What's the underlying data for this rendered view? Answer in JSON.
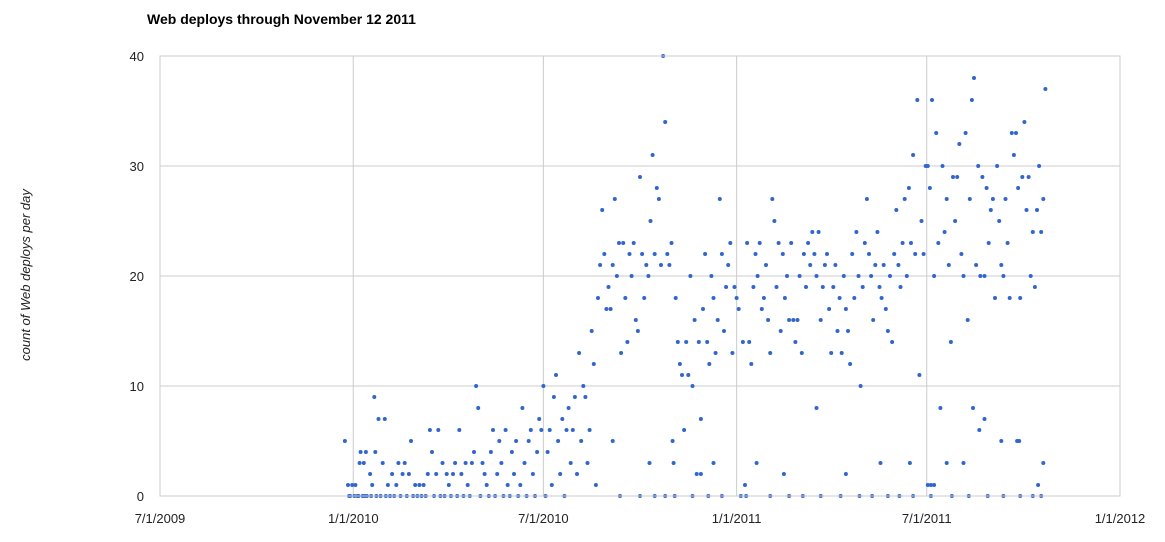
{
  "chart_data": {
    "type": "scatter",
    "title": "Web deploys through November 12 2011",
    "xlabel": "",
    "ylabel": "count of Web deploys per day",
    "x_ticks": [
      "7/1/2009",
      "1/1/2010",
      "7/1/2010",
      "1/1/2011",
      "7/1/2011",
      "1/1/2012"
    ],
    "xlim": [
      "2009-07-01",
      "2012-01-01"
    ],
    "y_ticks": [
      0,
      10,
      20,
      30,
      40
    ],
    "ylim": [
      0,
      40
    ],
    "grid": true,
    "legend": "none",
    "point_color": "#3366cc",
    "points": [
      [
        "2009-12-24",
        5
      ],
      [
        "2009-12-27",
        1
      ],
      [
        "2009-12-28",
        0
      ],
      [
        "2009-12-29",
        0
      ],
      [
        "2009-12-31",
        1
      ],
      [
        "2010-01-02",
        0
      ],
      [
        "2010-01-03",
        1
      ],
      [
        "2010-01-05",
        0
      ],
      [
        "2010-01-06",
        0
      ],
      [
        "2010-01-07",
        3
      ],
      [
        "2010-01-08",
        4
      ],
      [
        "2010-01-10",
        0
      ],
      [
        "2010-01-11",
        3
      ],
      [
        "2010-01-12",
        0
      ],
      [
        "2010-01-13",
        4
      ],
      [
        "2010-01-14",
        0
      ],
      [
        "2010-01-17",
        2
      ],
      [
        "2010-01-18",
        0
      ],
      [
        "2010-01-19",
        1
      ],
      [
        "2010-01-21",
        9
      ],
      [
        "2010-01-22",
        4
      ],
      [
        "2010-01-23",
        0
      ],
      [
        "2010-01-25",
        7
      ],
      [
        "2010-01-27",
        0
      ],
      [
        "2010-01-29",
        3
      ],
      [
        "2010-01-31",
        7
      ],
      [
        "2010-02-01",
        0
      ],
      [
        "2010-02-03",
        1
      ],
      [
        "2010-02-05",
        0
      ],
      [
        "2010-02-07",
        2
      ],
      [
        "2010-02-09",
        0
      ],
      [
        "2010-02-11",
        1
      ],
      [
        "2010-02-13",
        3
      ],
      [
        "2010-02-15",
        0
      ],
      [
        "2010-02-17",
        2
      ],
      [
        "2010-02-19",
        3
      ],
      [
        "2010-02-21",
        0
      ],
      [
        "2010-02-23",
        2
      ],
      [
        "2010-02-25",
        5
      ],
      [
        "2010-02-27",
        0
      ],
      [
        "2010-03-01",
        1
      ],
      [
        "2010-03-03",
        0
      ],
      [
        "2010-03-05",
        1
      ],
      [
        "2010-03-07",
        0
      ],
      [
        "2010-03-09",
        1
      ],
      [
        "2010-03-11",
        0
      ],
      [
        "2010-03-13",
        2
      ],
      [
        "2010-03-15",
        6
      ],
      [
        "2010-03-17",
        4
      ],
      [
        "2010-03-19",
        0
      ],
      [
        "2010-03-21",
        2
      ],
      [
        "2010-03-23",
        6
      ],
      [
        "2010-03-25",
        0
      ],
      [
        "2010-03-27",
        3
      ],
      [
        "2010-03-29",
        0
      ],
      [
        "2010-03-31",
        2
      ],
      [
        "2010-04-02",
        1
      ],
      [
        "2010-04-04",
        0
      ],
      [
        "2010-04-06",
        2
      ],
      [
        "2010-04-08",
        3
      ],
      [
        "2010-04-10",
        0
      ],
      [
        "2010-04-12",
        6
      ],
      [
        "2010-04-14",
        2
      ],
      [
        "2010-04-16",
        0
      ],
      [
        "2010-04-18",
        3
      ],
      [
        "2010-04-20",
        1
      ],
      [
        "2010-04-22",
        0
      ],
      [
        "2010-04-24",
        3
      ],
      [
        "2010-04-26",
        4
      ],
      [
        "2010-04-28",
        10
      ],
      [
        "2010-04-30",
        8
      ],
      [
        "2010-05-02",
        0
      ],
      [
        "2010-05-04",
        3
      ],
      [
        "2010-05-06",
        2
      ],
      [
        "2010-05-08",
        1
      ],
      [
        "2010-05-10",
        0
      ],
      [
        "2010-05-12",
        4
      ],
      [
        "2010-05-14",
        6
      ],
      [
        "2010-05-16",
        0
      ],
      [
        "2010-05-18",
        2
      ],
      [
        "2010-05-20",
        5
      ],
      [
        "2010-05-22",
        3
      ],
      [
        "2010-05-24",
        0
      ],
      [
        "2010-05-26",
        6
      ],
      [
        "2010-05-28",
        1
      ],
      [
        "2010-05-30",
        0
      ],
      [
        "2010-06-01",
        4
      ],
      [
        "2010-06-03",
        2
      ],
      [
        "2010-06-05",
        5
      ],
      [
        "2010-06-07",
        0
      ],
      [
        "2010-06-09",
        1
      ],
      [
        "2010-06-11",
        8
      ],
      [
        "2010-06-13",
        3
      ],
      [
        "2010-06-15",
        0
      ],
      [
        "2010-06-17",
        5
      ],
      [
        "2010-06-19",
        6
      ],
      [
        "2010-06-21",
        2
      ],
      [
        "2010-06-23",
        0
      ],
      [
        "2010-06-25",
        4
      ],
      [
        "2010-06-27",
        7
      ],
      [
        "2010-06-29",
        6
      ],
      [
        "2010-07-01",
        10
      ],
      [
        "2010-07-03",
        0
      ],
      [
        "2010-07-05",
        4
      ],
      [
        "2010-07-07",
        6
      ],
      [
        "2010-07-09",
        1
      ],
      [
        "2010-07-11",
        9
      ],
      [
        "2010-07-13",
        11
      ],
      [
        "2010-07-15",
        5
      ],
      [
        "2010-07-17",
        2
      ],
      [
        "2010-07-19",
        7
      ],
      [
        "2010-07-21",
        0
      ],
      [
        "2010-07-23",
        6
      ],
      [
        "2010-07-25",
        8
      ],
      [
        "2010-07-27",
        3
      ],
      [
        "2010-07-29",
        6
      ],
      [
        "2010-07-31",
        9
      ],
      [
        "2010-08-02",
        2
      ],
      [
        "2010-08-04",
        13
      ],
      [
        "2010-08-06",
        5
      ],
      [
        "2010-08-08",
        10
      ],
      [
        "2010-08-10",
        9
      ],
      [
        "2010-08-12",
        3
      ],
      [
        "2010-08-14",
        6
      ],
      [
        "2010-08-16",
        15
      ],
      [
        "2010-08-18",
        12
      ],
      [
        "2010-08-20",
        1
      ],
      [
        "2010-08-22",
        18
      ],
      [
        "2010-08-24",
        21
      ],
      [
        "2010-08-26",
        26
      ],
      [
        "2010-08-28",
        22
      ],
      [
        "2010-08-30",
        17
      ],
      [
        "2010-09-01",
        19
      ],
      [
        "2010-09-03",
        17
      ],
      [
        "2010-09-05",
        21
      ],
      [
        "2010-09-07",
        27
      ],
      [
        "2010-09-09",
        20
      ],
      [
        "2010-09-11",
        23
      ],
      [
        "2010-09-13",
        13
      ],
      [
        "2010-09-15",
        23
      ],
      [
        "2010-09-17",
        18
      ],
      [
        "2010-09-19",
        14
      ],
      [
        "2010-09-21",
        22
      ],
      [
        "2010-09-23",
        20
      ],
      [
        "2010-09-25",
        23
      ],
      [
        "2010-09-27",
        16
      ],
      [
        "2010-09-29",
        15
      ],
      [
        "2010-10-01",
        29
      ],
      [
        "2010-10-03",
        22
      ],
      [
        "2010-10-05",
        18
      ],
      [
        "2010-10-07",
        21
      ],
      [
        "2010-10-09",
        20
      ],
      [
        "2010-10-11",
        25
      ],
      [
        "2010-10-13",
        31
      ],
      [
        "2010-10-15",
        22
      ],
      [
        "2010-10-17",
        28
      ],
      [
        "2010-10-19",
        27
      ],
      [
        "2010-10-21",
        21
      ],
      [
        "2010-10-23",
        40
      ],
      [
        "2010-10-25",
        34
      ],
      [
        "2010-10-27",
        22
      ],
      [
        "2010-10-29",
        21
      ],
      [
        "2010-10-31",
        23
      ],
      [
        "2010-11-02",
        3
      ],
      [
        "2010-11-04",
        18
      ],
      [
        "2010-11-06",
        14
      ],
      [
        "2010-11-08",
        12
      ],
      [
        "2010-11-10",
        11
      ],
      [
        "2010-11-12",
        6
      ],
      [
        "2010-11-14",
        14
      ],
      [
        "2010-11-16",
        11
      ],
      [
        "2010-11-18",
        20
      ],
      [
        "2010-11-20",
        10
      ],
      [
        "2010-11-22",
        16
      ],
      [
        "2010-11-24",
        2
      ],
      [
        "2010-11-26",
        14
      ],
      [
        "2010-11-28",
        7
      ],
      [
        "2010-11-30",
        17
      ],
      [
        "2010-12-02",
        22
      ],
      [
        "2010-12-04",
        14
      ],
      [
        "2010-12-06",
        12
      ],
      [
        "2010-12-08",
        20
      ],
      [
        "2010-12-10",
        18
      ],
      [
        "2010-12-12",
        13
      ],
      [
        "2010-12-14",
        16
      ],
      [
        "2010-12-16",
        27
      ],
      [
        "2010-12-18",
        22
      ],
      [
        "2010-12-20",
        15
      ],
      [
        "2010-12-22",
        19
      ],
      [
        "2010-12-24",
        21
      ],
      [
        "2010-12-26",
        23
      ],
      [
        "2010-12-28",
        13
      ],
      [
        "2010-12-30",
        19
      ],
      [
        "2011-01-01",
        18
      ],
      [
        "2011-01-03",
        17
      ],
      [
        "2011-01-05",
        0
      ],
      [
        "2011-01-07",
        14
      ],
      [
        "2011-01-09",
        1
      ],
      [
        "2011-01-11",
        23
      ],
      [
        "2011-01-13",
        14
      ],
      [
        "2011-01-15",
        12
      ],
      [
        "2011-01-17",
        19
      ],
      [
        "2011-01-19",
        22
      ],
      [
        "2011-01-21",
        20
      ],
      [
        "2011-01-23",
        23
      ],
      [
        "2011-01-25",
        17
      ],
      [
        "2011-01-27",
        18
      ],
      [
        "2011-01-29",
        21
      ],
      [
        "2011-01-31",
        16
      ],
      [
        "2011-02-02",
        13
      ],
      [
        "2011-02-04",
        27
      ],
      [
        "2011-02-06",
        25
      ],
      [
        "2011-02-08",
        19
      ],
      [
        "2011-02-10",
        23
      ],
      [
        "2011-02-12",
        15
      ],
      [
        "2011-02-14",
        22
      ],
      [
        "2011-02-16",
        18
      ],
      [
        "2011-02-18",
        20
      ],
      [
        "2011-02-20",
        16
      ],
      [
        "2011-02-22",
        23
      ],
      [
        "2011-02-24",
        16
      ],
      [
        "2011-02-26",
        14
      ],
      [
        "2011-02-28",
        16
      ],
      [
        "2011-03-02",
        20
      ],
      [
        "2011-03-04",
        13
      ],
      [
        "2011-03-06",
        22
      ],
      [
        "2011-03-08",
        19
      ],
      [
        "2011-03-10",
        23
      ],
      [
        "2011-03-12",
        21
      ],
      [
        "2011-03-14",
        24
      ],
      [
        "2011-03-16",
        22
      ],
      [
        "2011-03-18",
        20
      ],
      [
        "2011-03-20",
        24
      ],
      [
        "2011-03-22",
        16
      ],
      [
        "2011-03-24",
        19
      ],
      [
        "2011-03-26",
        21
      ],
      [
        "2011-03-28",
        22
      ],
      [
        "2011-03-30",
        17
      ],
      [
        "2011-04-01",
        13
      ],
      [
        "2011-04-03",
        19
      ],
      [
        "2011-04-05",
        21
      ],
      [
        "2011-04-07",
        15
      ],
      [
        "2011-04-09",
        18
      ],
      [
        "2011-04-11",
        13
      ],
      [
        "2011-04-13",
        20
      ],
      [
        "2011-04-15",
        17
      ],
      [
        "2011-04-17",
        15
      ],
      [
        "2011-04-19",
        12
      ],
      [
        "2011-04-21",
        22
      ],
      [
        "2011-04-23",
        18
      ],
      [
        "2011-04-25",
        24
      ],
      [
        "2011-04-27",
        20
      ],
      [
        "2011-04-29",
        10
      ],
      [
        "2011-05-01",
        19
      ],
      [
        "2011-05-03",
        23
      ],
      [
        "2011-05-05",
        27
      ],
      [
        "2011-05-07",
        22
      ],
      [
        "2011-05-09",
        20
      ],
      [
        "2011-05-11",
        16
      ],
      [
        "2011-05-13",
        21
      ],
      [
        "2011-05-15",
        24
      ],
      [
        "2011-05-17",
        19
      ],
      [
        "2011-05-19",
        18
      ],
      [
        "2011-05-21",
        21
      ],
      [
        "2011-05-23",
        17
      ],
      [
        "2011-05-25",
        15
      ],
      [
        "2011-05-27",
        20
      ],
      [
        "2011-05-29",
        14
      ],
      [
        "2011-05-31",
        22
      ],
      [
        "2011-06-02",
        26
      ],
      [
        "2011-06-04",
        21
      ],
      [
        "2011-06-06",
        19
      ],
      [
        "2011-06-08",
        23
      ],
      [
        "2011-06-10",
        27
      ],
      [
        "2011-06-12",
        20
      ],
      [
        "2011-06-14",
        28
      ],
      [
        "2011-06-16",
        23
      ],
      [
        "2011-06-18",
        31
      ],
      [
        "2011-06-20",
        22
      ],
      [
        "2011-06-22",
        36
      ],
      [
        "2011-06-24",
        11
      ],
      [
        "2011-06-26",
        25
      ],
      [
        "2011-06-28",
        22
      ],
      [
        "2011-06-30",
        30
      ],
      [
        "2011-07-02",
        30
      ],
      [
        "2011-07-04",
        28
      ],
      [
        "2011-07-06",
        36
      ],
      [
        "2011-07-08",
        20
      ],
      [
        "2011-07-10",
        33
      ],
      [
        "2011-07-12",
        23
      ],
      [
        "2011-07-14",
        8
      ],
      [
        "2011-07-16",
        30
      ],
      [
        "2011-07-18",
        24
      ],
      [
        "2011-07-20",
        27
      ],
      [
        "2011-07-22",
        21
      ],
      [
        "2011-07-24",
        14
      ],
      [
        "2011-07-26",
        29
      ],
      [
        "2011-07-28",
        25
      ],
      [
        "2011-07-30",
        29
      ],
      [
        "2011-08-01",
        32
      ],
      [
        "2011-08-03",
        22
      ],
      [
        "2011-08-05",
        20
      ],
      [
        "2011-08-07",
        33
      ],
      [
        "2011-08-09",
        16
      ],
      [
        "2011-08-11",
        27
      ],
      [
        "2011-08-13",
        36
      ],
      [
        "2011-08-15",
        38
      ],
      [
        "2011-08-17",
        21
      ],
      [
        "2011-08-19",
        30
      ],
      [
        "2011-08-21",
        20
      ],
      [
        "2011-08-23",
        29
      ],
      [
        "2011-08-25",
        20
      ],
      [
        "2011-08-27",
        28
      ],
      [
        "2011-08-29",
        23
      ],
      [
        "2011-08-31",
        26
      ],
      [
        "2011-09-02",
        27
      ],
      [
        "2011-09-04",
        18
      ],
      [
        "2011-09-06",
        30
      ],
      [
        "2011-09-08",
        25
      ],
      [
        "2011-09-10",
        21
      ],
      [
        "2011-09-12",
        20
      ],
      [
        "2011-09-14",
        27
      ],
      [
        "2011-09-16",
        23
      ],
      [
        "2011-09-18",
        18
      ],
      [
        "2011-09-20",
        33
      ],
      [
        "2011-09-22",
        31
      ],
      [
        "2011-09-24",
        33
      ],
      [
        "2011-09-26",
        28
      ],
      [
        "2011-09-28",
        18
      ],
      [
        "2011-09-30",
        29
      ],
      [
        "2011-10-02",
        34
      ],
      [
        "2011-10-04",
        26
      ],
      [
        "2011-10-06",
        29
      ],
      [
        "2011-10-08",
        20
      ],
      [
        "2011-10-10",
        24
      ],
      [
        "2011-10-12",
        19
      ],
      [
        "2011-10-14",
        26
      ],
      [
        "2011-10-16",
        30
      ],
      [
        "2011-10-18",
        24
      ],
      [
        "2011-10-20",
        27
      ],
      [
        "2011-10-22",
        37
      ],
      [
        "2010-09-12",
        0
      ],
      [
        "2010-10-01",
        0
      ],
      [
        "2010-10-15",
        0
      ],
      [
        "2010-10-25",
        0
      ],
      [
        "2010-11-03",
        0
      ],
      [
        "2010-11-20",
        0
      ],
      [
        "2010-12-05",
        0
      ],
      [
        "2010-12-18",
        0
      ],
      [
        "2011-01-10",
        0
      ],
      [
        "2011-02-02",
        0
      ],
      [
        "2011-02-20",
        0
      ],
      [
        "2011-03-05",
        0
      ],
      [
        "2011-03-22",
        0
      ],
      [
        "2011-04-10",
        0
      ],
      [
        "2011-04-28",
        0
      ],
      [
        "2011-05-10",
        0
      ],
      [
        "2011-05-25",
        0
      ],
      [
        "2011-06-05",
        0
      ],
      [
        "2011-06-18",
        0
      ],
      [
        "2011-07-05",
        0
      ],
      [
        "2011-07-25",
        0
      ],
      [
        "2011-08-10",
        0
      ],
      [
        "2011-08-28",
        0
      ],
      [
        "2011-09-12",
        0
      ],
      [
        "2011-09-28",
        0
      ],
      [
        "2011-10-10",
        0
      ],
      [
        "2011-10-18",
        0
      ],
      [
        "2010-09-05",
        5
      ],
      [
        "2010-10-10",
        3
      ],
      [
        "2010-11-01",
        5
      ],
      [
        "2010-11-28",
        2
      ],
      [
        "2010-12-10",
        3
      ],
      [
        "2011-01-20",
        3
      ],
      [
        "2011-02-15",
        2
      ],
      [
        "2011-03-18",
        8
      ],
      [
        "2011-04-15",
        2
      ],
      [
        "2011-05-18",
        3
      ],
      [
        "2011-06-15",
        3
      ],
      [
        "2011-07-02",
        1
      ],
      [
        "2011-07-05",
        1
      ],
      [
        "2011-07-08",
        1
      ],
      [
        "2011-07-20",
        3
      ],
      [
        "2011-08-05",
        3
      ],
      [
        "2011-08-14",
        8
      ],
      [
        "2011-08-20",
        6
      ],
      [
        "2011-08-25",
        7
      ],
      [
        "2011-09-10",
        5
      ],
      [
        "2011-09-25",
        5
      ],
      [
        "2011-09-27",
        5
      ],
      [
        "2011-10-15",
        1
      ],
      [
        "2011-10-20",
        3
      ]
    ]
  }
}
